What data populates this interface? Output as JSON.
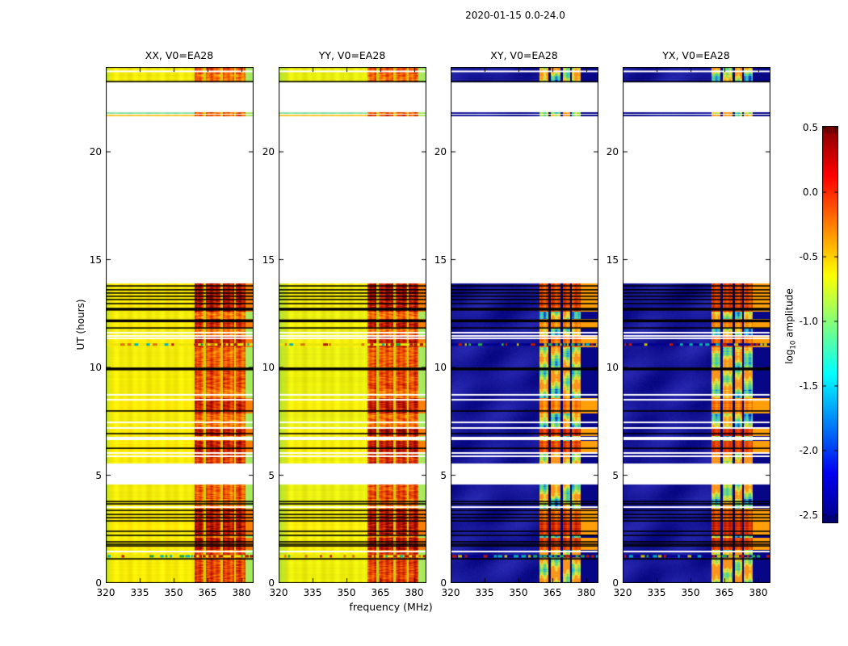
{
  "chart_data": {
    "type": "heatmap",
    "title": "2020-01-15 0.0-24.0",
    "xlabel": "frequency (MHz)",
    "ylabel": "UT (hours)",
    "xlim": [
      320,
      385.4
    ],
    "ylim": [
      0,
      23.93
    ],
    "x_ticks": [
      320,
      335,
      350,
      365,
      380
    ],
    "x_tick_labels": [
      "320",
      "335",
      "350",
      "365",
      "380"
    ],
    "y_ticks": [
      0,
      5,
      10,
      15,
      20
    ],
    "y_tick_labels": [
      "0",
      "5",
      "10",
      "15",
      "20"
    ],
    "grid": false,
    "panels": [
      {
        "label": "XX, V0=EA28",
        "pol": "XX",
        "style": "auto"
      },
      {
        "label": "YY, V0=EA28",
        "pol": "YY",
        "style": "auto"
      },
      {
        "label": "XY, V0=EA28",
        "pol": "XY",
        "style": "cross"
      },
      {
        "label": "YX, V0=EA28",
        "pol": "YX",
        "style": "cross"
      }
    ],
    "colorbar": {
      "label_parts": [
        "log",
        "10",
        " amplitude"
      ],
      "cmap": "jet",
      "ticks": [
        0.5,
        0.0,
        -0.5,
        -1.0,
        -1.5,
        -2.0,
        -2.5
      ],
      "tick_labels": [
        "0.5",
        "0.0",
        "-0.5",
        "-1.0",
        "-1.5",
        "-2.0",
        "-2.5"
      ],
      "vmin": -2.5,
      "vmax": 0.5
    },
    "palette": {
      "auto_base": "#f2ec0a",
      "auto_base_yy": "#e8ee12",
      "auto_left_edge_green": "#a8e24b",
      "auto_tail_green": "#a8e85c",
      "cross_base": "#00008c",
      "hot_red": "#c02000",
      "flag_black": "#000000",
      "gap_white": "#ffffff"
    },
    "frequency_structure": {
      "quiet_until_mhz": 359,
      "bright_bands_auto_mhz": [
        [
          359,
          363
        ],
        [
          364,
          370.5
        ],
        [
          371.5,
          376.5
        ],
        [
          377.5,
          381.5
        ]
      ],
      "bright_bands_cross_mhz": [
        [
          359,
          363
        ],
        [
          364,
          368.5
        ],
        [
          369.5,
          372.5
        ],
        [
          373.5,
          377.3
        ]
      ],
      "auto_tail_mhz": [
        381.5,
        385.4
      ],
      "cross_bright_end_mhz": 377.3
    },
    "time_structure": {
      "data_bands": [
        {
          "t": [
            23.24,
            23.93
          ]
        },
        {
          "t": [
            21.78,
            21.87
          ],
          "thin": "cyan"
        },
        {
          "t": [
            21.65,
            21.74
          ],
          "thin": "orange"
        },
        {
          "t": [
            5.58,
            13.93
          ]
        },
        {
          "t": [
            0,
            4.57
          ]
        }
      ],
      "gaps": [
        [
          21.87,
          23.24
        ],
        [
          13.93,
          21.65
        ],
        [
          4.57,
          5.58
        ]
      ],
      "black_lines": [
        23.26,
        13.78,
        13.6,
        13.45,
        13.3,
        13.15,
        12.96,
        11.83,
        7.98,
        6.93,
        6.25,
        3.78,
        3.67,
        3.37,
        3.18,
        3.03,
        2.88,
        2.4,
        2.21,
        1.91,
        1.8,
        1.72,
        1.12
      ],
      "thick_black_lines": [
        12.7,
        12.16,
        9.93
      ],
      "white_lines": [
        23.73,
        11.61,
        11.46,
        11.35,
        8.73,
        8.5,
        7.45,
        7.19,
        6.03,
        5.88,
        3.52,
        1.46
      ],
      "white_bands": [
        [
          6.63,
          6.78
        ]
      ],
      "speckle_lines": [
        11.06,
        1.24
      ],
      "hot_rows": [
        [
          23.6,
          23.93,
          0.55
        ],
        [
          12.6,
          13.93,
          0.9
        ],
        [
          11.8,
          12.25,
          0.8
        ],
        [
          10.95,
          11.45,
          0.85
        ],
        [
          9.96,
          10.94,
          0.45
        ],
        [
          9.0,
          9.89,
          0.55
        ],
        [
          7.9,
          8.6,
          0.82
        ],
        [
          6.85,
          7.2,
          0.95
        ],
        [
          6.05,
          6.6,
          0.9
        ],
        [
          5.58,
          6.05,
          0.7
        ],
        [
          3.9,
          4.57,
          0.5
        ],
        [
          2.85,
          3.45,
          0.85
        ],
        [
          2.25,
          2.85,
          0.95
        ],
        [
          1.55,
          2.1,
          0.9
        ],
        [
          1.1,
          1.5,
          0.7
        ],
        [
          0,
          1.1,
          0.6
        ]
      ]
    }
  }
}
